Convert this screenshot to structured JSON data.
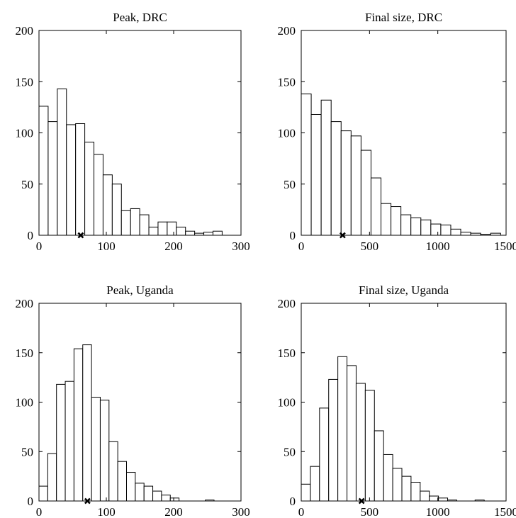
{
  "chart_data": [
    {
      "type": "bar",
      "title": "Peak, DRC",
      "x_range": [
        0,
        300
      ],
      "ylim": [
        0,
        200
      ],
      "bin_width": 13.6,
      "bin_start": 0,
      "values": [
        126,
        111,
        143,
        108,
        109,
        91,
        79,
        59,
        50,
        24,
        26,
        20,
        8,
        13,
        13,
        8,
        4,
        2,
        3,
        4
      ],
      "xticks": [
        "0",
        "100",
        "200",
        "300"
      ],
      "yticks": [
        "0",
        "50",
        "100",
        "150",
        "200"
      ],
      "marker_x": 62,
      "grid": false
    },
    {
      "type": "bar",
      "title": "Final size, DRC",
      "x_range": [
        0,
        1500
      ],
      "ylim": [
        0,
        200
      ],
      "bin_width": 73,
      "bin_start": 0,
      "values": [
        138,
        118,
        132,
        111,
        102,
        97,
        83,
        56,
        31,
        28,
        20,
        17,
        15,
        11,
        10,
        6,
        3,
        2,
        1,
        2
      ],
      "xticks": [
        "0",
        "500",
        "1000",
        "1500"
      ],
      "yticks": [
        "0",
        "50",
        "100",
        "150",
        "200"
      ],
      "marker_x": 303,
      "grid": false
    },
    {
      "type": "bar",
      "title": "Peak, Uganda",
      "x_range": [
        0,
        300
      ],
      "ylim": [
        0,
        200
      ],
      "bin_width": 13,
      "bin_start": 0,
      "values": [
        15,
        48,
        118,
        121,
        154,
        158,
        105,
        102,
        60,
        40,
        29,
        18,
        15,
        10,
        6,
        3,
        0,
        0,
        0,
        1
      ],
      "xticks": [
        "0",
        "100",
        "200",
        "300"
      ],
      "yticks": [
        "0",
        "50",
        "100",
        "150",
        "200"
      ],
      "marker_x": 72,
      "grid": false
    },
    {
      "type": "bar",
      "title": "Final size, Uganda",
      "x_range": [
        0,
        1500
      ],
      "ylim": [
        0,
        200
      ],
      "bin_width": 67,
      "bin_start": 0,
      "values": [
        17,
        35,
        94,
        123,
        146,
        137,
        119,
        112,
        71,
        47,
        33,
        25,
        19,
        10,
        5,
        3,
        1,
        0,
        0,
        1
      ],
      "xticks": [
        "0",
        "500",
        "1000",
        "1500"
      ],
      "yticks": [
        "0",
        "50",
        "100",
        "150",
        "200"
      ],
      "marker_x": 442,
      "grid": false
    }
  ]
}
